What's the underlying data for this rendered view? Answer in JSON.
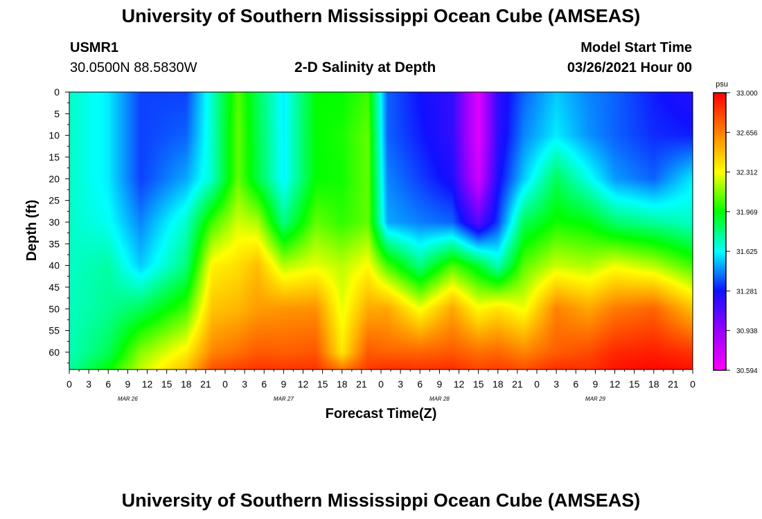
{
  "page": {
    "title_top": "University of Southern Mississippi Ocean Cube (AMSEAS)",
    "title_bottom": "University of Southern Mississippi Ocean Cube (AMSEAS)",
    "station_id": "USMR1",
    "coordinates": "30.0500N  88.5830W",
    "plot_title": "2-D Salinity at Depth",
    "model_start_label": "Model Start Time",
    "model_start_value": "03/26/2021 Hour 00"
  },
  "chart_data": {
    "type": "heatmap",
    "title": "2-D Salinity at Depth",
    "xlabel": "Forecast Time(Z)",
    "ylabel": "Depth (ft)",
    "x_range_hours": [
      0,
      96
    ],
    "ylim": [
      0,
      64
    ],
    "x_ticks": [
      "0",
      "3",
      "6",
      "9",
      "12",
      "15",
      "18",
      "21",
      "0",
      "3",
      "6",
      "9",
      "12",
      "15",
      "18",
      "21",
      "0",
      "3",
      "6",
      "9",
      "12",
      "15",
      "18",
      "21",
      "0",
      "3",
      "6",
      "9",
      "12",
      "15",
      "18",
      "21",
      "0"
    ],
    "date_labels": [
      "MAR 26",
      "MAR 27",
      "MAR 28",
      "MAR 29"
    ],
    "y_ticks": [
      0,
      5,
      10,
      15,
      20,
      25,
      30,
      35,
      40,
      45,
      50,
      55,
      60
    ],
    "colorbar": {
      "unit": "psu",
      "min": 30.594,
      "max": 33.0,
      "labels": [
        "33.000",
        "32.656",
        "32.312",
        "31.969",
        "31.625",
        "31.281",
        "30.938",
        "30.594"
      ],
      "colors": [
        "#ff00ff",
        "#9900ff",
        "#1010ff",
        "#00ffff",
        "#00ff00",
        "#ffff00",
        "#ff8000",
        "#ff0000"
      ]
    },
    "time_hours": [
      0,
      6,
      11,
      18,
      22,
      26,
      29,
      33,
      38,
      42,
      46,
      49,
      54,
      59,
      63,
      66,
      70,
      75,
      80,
      84,
      90,
      96
    ],
    "depth_ft": [
      0,
      10,
      20,
      30,
      40,
      50,
      60,
      64
    ],
    "salinity_psu": [
      [
        31.7,
        31.7,
        31.7,
        31.7,
        31.7,
        31.71,
        31.72,
        31.75
      ],
      [
        31.6,
        31.6,
        31.6,
        31.64,
        31.75,
        31.77,
        31.85,
        31.97
      ],
      [
        31.35,
        31.35,
        31.35,
        31.45,
        31.55,
        31.85,
        32.15,
        32.23
      ],
      [
        31.35,
        31.4,
        31.5,
        31.7,
        31.8,
        32.05,
        32.35,
        32.48
      ],
      [
        31.7,
        31.7,
        31.7,
        32.05,
        32.34,
        32.47,
        32.64,
        32.78
      ],
      [
        32.08,
        32.1,
        32.1,
        32.25,
        32.4,
        32.51,
        32.7,
        32.83
      ],
      [
        31.85,
        31.87,
        31.88,
        32.2,
        32.49,
        32.58,
        32.76,
        32.86
      ],
      [
        31.6,
        31.61,
        31.61,
        31.79,
        32.21,
        32.6,
        32.75,
        32.85
      ],
      [
        31.97,
        31.97,
        31.97,
        32.1,
        32.28,
        32.61,
        32.77,
        32.86
      ],
      [
        31.97,
        32.0,
        31.99,
        32.03,
        32.22,
        32.28,
        32.37,
        32.68
      ],
      [
        32.05,
        32.1,
        32.1,
        32.1,
        32.32,
        32.54,
        32.76,
        32.84
      ],
      [
        31.4,
        31.4,
        31.45,
        31.5,
        32.06,
        32.55,
        32.73,
        32.88
      ],
      [
        31.28,
        31.3,
        31.35,
        31.44,
        31.79,
        32.3,
        32.73,
        32.86
      ],
      [
        31.2,
        31.2,
        31.25,
        31.4,
        32.07,
        32.55,
        32.76,
        32.88
      ],
      [
        30.7,
        30.7,
        30.75,
        31.1,
        31.91,
        32.32,
        32.7,
        32.81
      ],
      [
        31.2,
        31.2,
        31.25,
        31.35,
        31.72,
        32.39,
        32.72,
        32.84
      ],
      [
        31.4,
        31.45,
        31.55,
        31.85,
        32.09,
        32.29,
        32.64,
        32.79
      ],
      [
        31.55,
        31.6,
        31.85,
        31.99,
        32.24,
        32.65,
        32.75,
        32.88
      ],
      [
        31.45,
        31.47,
        31.65,
        31.95,
        32.2,
        32.55,
        32.8,
        32.87
      ],
      [
        31.4,
        31.4,
        31.48,
        31.82,
        32.29,
        32.67,
        32.89,
        32.95
      ],
      [
        31.3,
        31.32,
        31.4,
        31.76,
        32.21,
        32.73,
        32.92,
        32.98
      ],
      [
        31.22,
        31.3,
        31.6,
        31.7,
        32.05,
        32.48,
        32.86,
        32.96
      ]
    ]
  }
}
